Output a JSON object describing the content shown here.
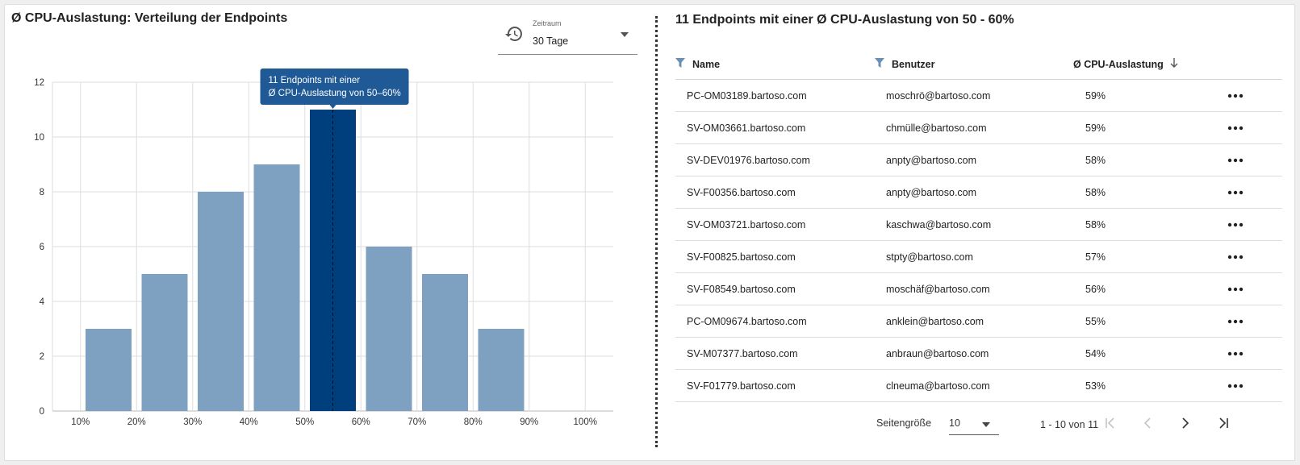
{
  "left": {
    "title": "Ø CPU-Auslastung: Verteilung der Endpoints",
    "period": {
      "label": "Zeitraum",
      "value": "30 Tage"
    }
  },
  "chart_data": {
    "type": "bar",
    "title": "Ø CPU-Auslastung: Verteilung der Endpoints",
    "x_ticks": [
      "10%",
      "20%",
      "30%",
      "40%",
      "50%",
      "60%",
      "70%",
      "80%",
      "90%",
      "100%"
    ],
    "bins": [
      "10-20%",
      "20-30%",
      "30-40%",
      "40-50%",
      "50-60%",
      "60-70%",
      "70-80%",
      "80-90%"
    ],
    "values": [
      3,
      5,
      8,
      9,
      11,
      6,
      5,
      3
    ],
    "ylim": [
      0,
      12
    ],
    "y_ticks": [
      0,
      2,
      4,
      6,
      8,
      10,
      12
    ],
    "grid": true,
    "highlight_index": 4,
    "colors": {
      "bar": "#7fa1c1",
      "highlight": "#003f7d",
      "tooltip": "#1f5a96"
    },
    "tooltip": {
      "line1": "11 Endpoints mit einer",
      "line2": "Ø CPU-Auslastung von 50–60%"
    }
  },
  "right": {
    "title": "11 Endpoints mit einer Ø CPU-Auslastung von 50 - 60%",
    "columns": {
      "name": "Name",
      "user": "Benutzer",
      "cpu": "Ø CPU-Auslastung"
    },
    "rows": [
      {
        "name": "PC-OM03189.bartoso.com",
        "user": "moschrö@bartoso.com",
        "cpu": "59%"
      },
      {
        "name": "SV-OM03661.bartoso.com",
        "user": "chmülle@bartoso.com",
        "cpu": "59%"
      },
      {
        "name": "SV-DEV01976.bartoso.com",
        "user": "anpty@bartoso.com",
        "cpu": "58%"
      },
      {
        "name": "SV-F00356.bartoso.com",
        "user": "anpty@bartoso.com",
        "cpu": "58%"
      },
      {
        "name": "SV-OM03721.bartoso.com",
        "user": "kaschwa@bartoso.com",
        "cpu": "58%"
      },
      {
        "name": "SV-F00825.bartoso.com",
        "user": "stpty@bartoso.com",
        "cpu": "57%"
      },
      {
        "name": "SV-F08549.bartoso.com",
        "user": "moschäf@bartoso.com",
        "cpu": "56%"
      },
      {
        "name": "PC-OM09674.bartoso.com",
        "user": "anklein@bartoso.com",
        "cpu": "55%"
      },
      {
        "name": "SV-M07377.bartoso.com",
        "user": "anbraun@bartoso.com",
        "cpu": "54%"
      },
      {
        "name": "SV-F01779.bartoso.com",
        "user": "clneuma@bartoso.com",
        "cpu": "53%"
      }
    ],
    "pager": {
      "page_size_label": "Seitengröße",
      "page_size": "10",
      "range": "1 - 10 von 11"
    }
  },
  "icons": {
    "period": "history-icon",
    "filter": "filter-icon",
    "sort": "arrow-down-icon",
    "row_menu": "more-horizontal-icon",
    "first": "first-page-icon",
    "prev": "chevron-left-icon",
    "next": "chevron-right-icon",
    "last": "last-page-icon"
  },
  "colors": {
    "filter": "#6b8fb5",
    "text": "#222222",
    "disabled": "#c4c4c4"
  }
}
